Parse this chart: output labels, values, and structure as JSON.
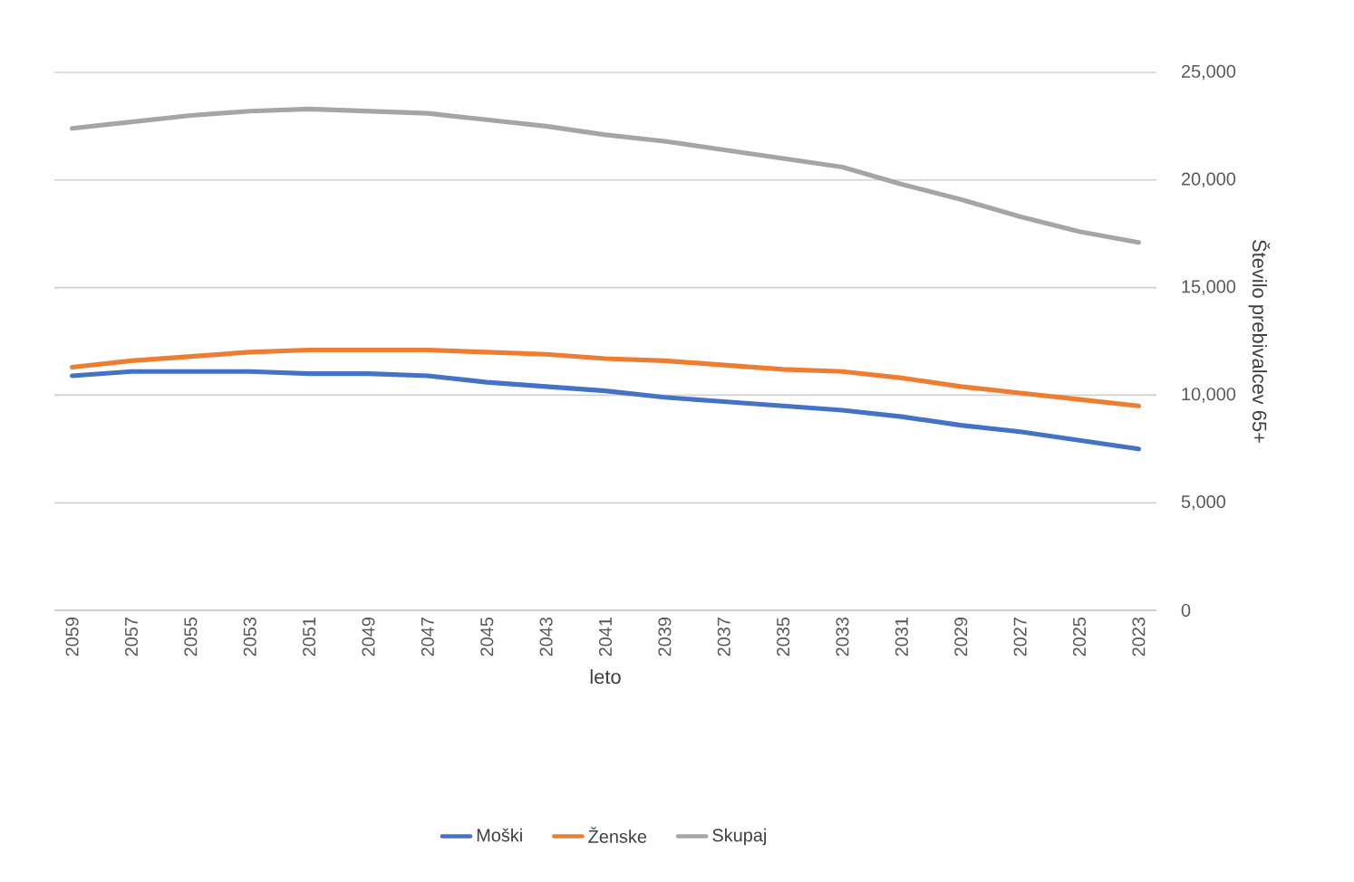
{
  "chart_data": {
    "type": "line",
    "xlabel": "leto",
    "ylabel": "Število prebivalcev 65+",
    "x": [
      2023,
      2025,
      2027,
      2029,
      2031,
      2033,
      2035,
      2037,
      2039,
      2041,
      2043,
      2045,
      2047,
      2049,
      2051,
      2053,
      2055,
      2057,
      2059
    ],
    "xlim": [
      2059.6,
      2022.4
    ],
    "xticks": [
      2023,
      2025,
      2027,
      2029,
      2031,
      2033,
      2035,
      2037,
      2039,
      2041,
      2043,
      2045,
      2047,
      2049,
      2051,
      2053,
      2055,
      2057,
      2059
    ],
    "ylim": [
      0,
      25000
    ],
    "yticks": [
      0,
      {
        "value": 5000,
        "label": "5,000"
      },
      {
        "value": 10000,
        "label": "10,000"
      },
      {
        "value": 15000,
        "label": "15,000"
      },
      {
        "value": 20000,
        "label": "20,000"
      },
      {
        "value": 25000,
        "label": "25,000"
      }
    ],
    "series": [
      {
        "name": "Moški",
        "color": "#4472c4",
        "values": [
          7500,
          7900,
          8300,
          8600,
          9000,
          9300,
          9500,
          9700,
          9900,
          10200,
          10400,
          10600,
          10900,
          11000,
          11000,
          11100,
          11100,
          11100,
          10900
        ]
      },
      {
        "name": "Ženske",
        "color": "#ed7d31",
        "values": [
          9500,
          9800,
          10100,
          10400,
          10800,
          11100,
          11200,
          11400,
          11600,
          11700,
          11900,
          12000,
          12100,
          12100,
          12100,
          12000,
          11800,
          11600,
          11300
        ]
      },
      {
        "name": "Skupaj",
        "color": "#a5a5a5",
        "values": [
          17100,
          17600,
          18300,
          19100,
          19800,
          20600,
          21000,
          21400,
          21800,
          22100,
          22500,
          22800,
          23100,
          23200,
          23300,
          23200,
          23000,
          22700,
          22400
        ]
      }
    ],
    "grid": "y",
    "legend": "bottom",
    "marker": "none",
    "line_style": "solid"
  }
}
